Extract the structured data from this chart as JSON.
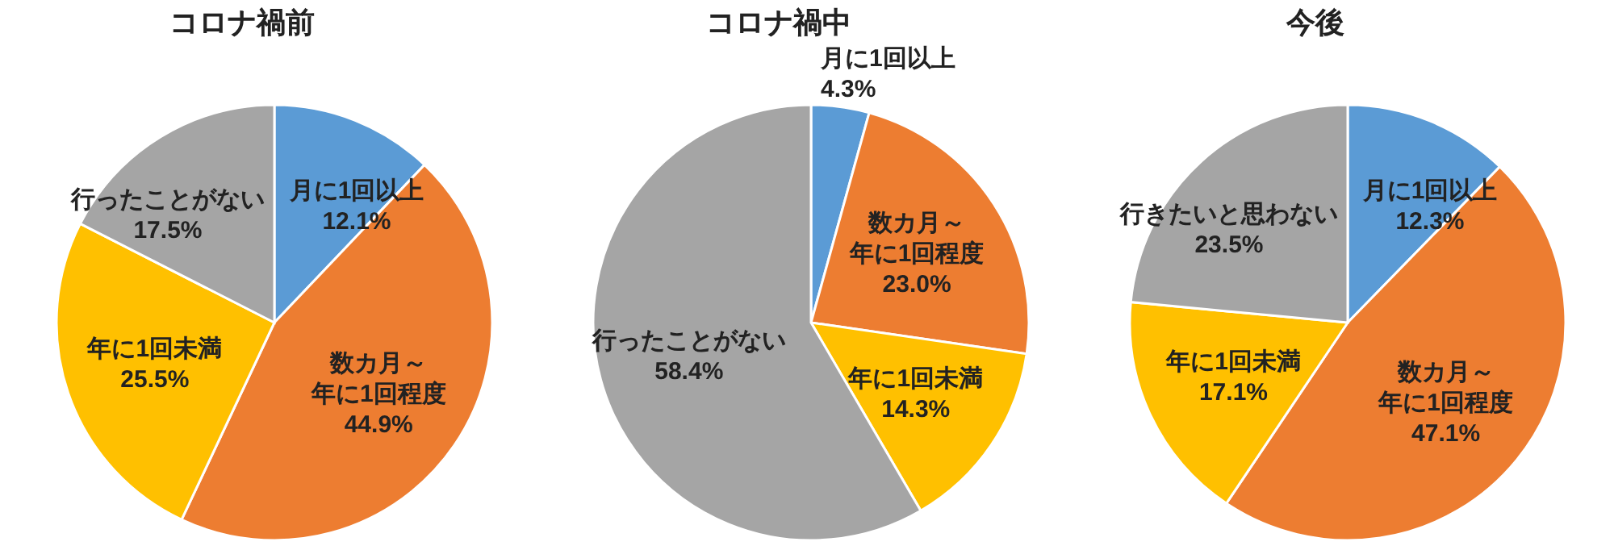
{
  "chart_data": [
    {
      "type": "pie",
      "title": "コロナ禍前",
      "categories": [
        "月に1回以上",
        "数カ月～年に1回程度",
        "年に1回未満",
        "行ったことがない"
      ],
      "values": [
        12.1,
        44.9,
        25.5,
        17.5
      ],
      "value_labels": [
        "12.1%",
        "44.9%",
        "25.5%",
        "17.5%"
      ],
      "colors": [
        "#5b9bd5",
        "#ed7d31",
        "#ffc000",
        "#a5a5a5"
      ]
    },
    {
      "type": "pie",
      "title": "コロナ禍中",
      "categories": [
        "月に1回以上",
        "数カ月～年に1回程度",
        "年に1回未満",
        "行ったことがない"
      ],
      "values": [
        4.3,
        23.0,
        14.3,
        58.4
      ],
      "value_labels": [
        "4.3%",
        "23.0%",
        "14.3%",
        "58.4%"
      ],
      "colors": [
        "#5b9bd5",
        "#ed7d31",
        "#ffc000",
        "#a5a5a5"
      ]
    },
    {
      "type": "pie",
      "title": "今後",
      "categories": [
        "月に1回以上",
        "数カ月～年に1回程度",
        "年に1回未満",
        "行きたいと思わない"
      ],
      "values": [
        12.3,
        47.1,
        17.1,
        23.5
      ],
      "value_labels": [
        "12.3%",
        "47.1%",
        "17.1%",
        "23.5%"
      ],
      "colors": [
        "#5b9bd5",
        "#ed7d31",
        "#ffc000",
        "#a5a5a5"
      ]
    }
  ]
}
